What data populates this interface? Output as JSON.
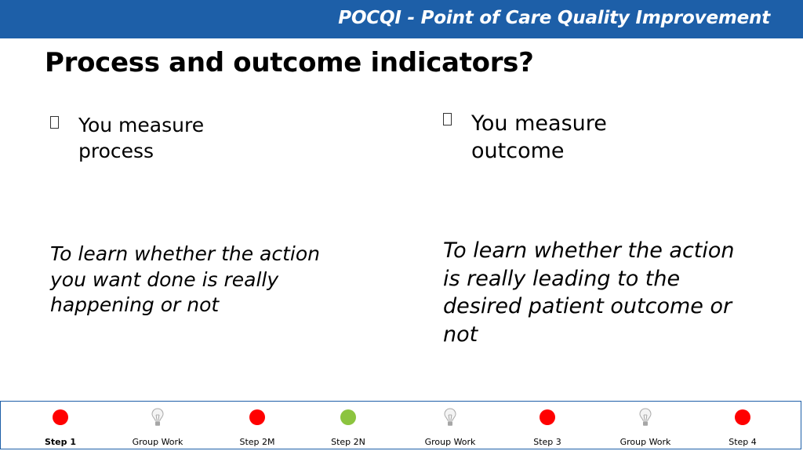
{
  "header": {
    "title": "POCQI - Point of Care Quality Improvement"
  },
  "slide": {
    "title": "Process and outcome indicators?",
    "left": {
      "bullet": "You measure process",
      "note": "To learn whether the action you want done is really happening or not"
    },
    "right": {
      "bullet": "You measure outcome",
      "note": "To learn whether the action is really leading to the desired patient outcome or not"
    }
  },
  "steps": [
    {
      "label": "Step 1",
      "marker": "red-dot",
      "current": true
    },
    {
      "label": "Group Work",
      "marker": "lightbulb-icon"
    },
    {
      "label": "Step 2M",
      "marker": "red-dot"
    },
    {
      "label": "Step 2N",
      "marker": "green-dot"
    },
    {
      "label": "Group Work",
      "marker": "lightbulb-icon"
    },
    {
      "label": "Step 3",
      "marker": "red-dot"
    },
    {
      "label": "Group Work",
      "marker": "lightbulb-icon"
    },
    {
      "label": "Step 4",
      "marker": "red-dot"
    }
  ],
  "colors": {
    "header": "#1d5fa8",
    "red": "#ff0000",
    "green": "#8cc43f"
  }
}
